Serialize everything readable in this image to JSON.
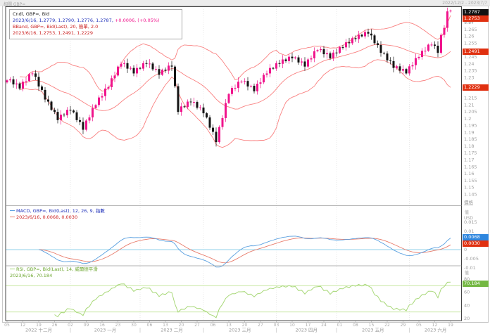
{
  "header": {
    "related_label": "相關 GBP=",
    "date_range": "2022/12/2 - 2023/7/7"
  },
  "main_legend": {
    "line1": "Cndl, GBP=, Bid",
    "line2_main": "2023/6/16, 1.2779, 1.2790, 1.2776, 1.2787,",
    "line2_change": " +0.0006, (+0.05%)",
    "line3": "BBand, GBP=, Bid(Last), 20, 簡單, 2.0",
    "line4": "2023/6/16, 1.2753, 1.2491, 1.2229"
  },
  "macd_legend": {
    "line1": "MACD, GBP=, Bid(Last), 12, 26, 9, 指數",
    "line2": "2023/6/16, 0.0068, 0.0030"
  },
  "rsi_legend": {
    "line1": "RSI, GBP=, Bid(Last), 14, 威爾德平滑",
    "line2": "2023/6/16, 70.184"
  },
  "y_axis": {
    "unit": "USD",
    "price_title": "價格",
    "macd_title": "值",
    "rsi_title": "值",
    "last_price": "1.2787",
    "bb_upper": "1.2753",
    "bb_mid": "1.2491",
    "bb_lower": "1.2229",
    "macd_badge": "0.0068",
    "signal_badge": "0.0030",
    "rsi_badge": "70.184"
  },
  "x_axis": {
    "day_labels": [
      "05",
      "12",
      "19",
      "26",
      "02",
      "09",
      "16",
      "23",
      "30",
      "06",
      "13",
      "20",
      "27",
      "06",
      "13",
      "20",
      "27",
      "03",
      "10",
      "17",
      "24",
      "01",
      "08",
      "15",
      "22",
      "29",
      "05",
      "12",
      "19"
    ],
    "months": [
      {
        "label": "2022 十二月",
        "start": 0,
        "end": 20
      },
      {
        "label": "2023 一月",
        "start": 20,
        "end": 42
      },
      {
        "label": "2023 二月",
        "start": 42,
        "end": 62
      },
      {
        "label": "2023 三月",
        "start": 62,
        "end": 85
      },
      {
        "label": "2023 四月",
        "start": 85,
        "end": 104
      },
      {
        "label": "2023 五月",
        "start": 104,
        "end": 127
      },
      {
        "label": "2023 六月",
        "start": 127,
        "end": 143.5
      }
    ]
  },
  "colors": {
    "up": "#f0148c",
    "down": "#141414",
    "bband": "#f98080",
    "macd": "#5aa0e0",
    "signal": "#e87b6a",
    "zero_line": "#8fd0e8",
    "rsi": "#a8d878",
    "rsi_band": "#bfe394",
    "badge_black": "#111111",
    "badge_red": "#e03010",
    "badge_blue": "#2e86de",
    "badge_green": "#74b843",
    "axis_text": "#a0a0a0",
    "grid": "#e2e2e2",
    "frame": "#444444",
    "divider": "#999999"
  },
  "chart_data": {
    "type": "candlestick",
    "symbol": "GBP=",
    "field": "Bid",
    "interval": "daily",
    "x_range": "2022/12/05 - 2023/06/16",
    "title": "Cndl, GBP=, Bid with BBand(20,2), MACD(12,26,9), RSI(14)",
    "price_axis": {
      "min": 1.14,
      "max": 1.28,
      "tick": 0.005,
      "unit": "USD"
    },
    "macd_axis": {
      "min": -0.01,
      "max": 0.02,
      "tick": 0.005
    },
    "rsi_axis": {
      "min": 20,
      "max": 80,
      "ticks": [
        80,
        60,
        40,
        20
      ],
      "bands": [
        70,
        30
      ]
    },
    "last_candle": {
      "date": "2023/6/16",
      "open": 1.2779,
      "high": 1.279,
      "low": 1.2776,
      "close": 1.2787,
      "change": 0.0006,
      "change_pct": "+0.05%"
    },
    "indicators": [
      {
        "type": "bollinger",
        "period": 20,
        "stdev": 2.0,
        "ma": "簡單",
        "last": {
          "upper": 1.2753,
          "mid": 1.2491,
          "lower": 1.2229
        }
      },
      {
        "type": "macd",
        "fast": 12,
        "slow": 26,
        "signal": 9,
        "method": "指數",
        "last": {
          "macd": 0.0068,
          "signal": 0.003
        }
      },
      {
        "type": "rsi",
        "period": 14,
        "method": "威爾德平滑",
        "last": 70.184
      }
    ],
    "closes": [
      1.228,
      1.2287,
      1.225,
      1.2257,
      1.222,
      1.227,
      1.2275,
      1.2325,
      1.233,
      1.2305,
      1.2235,
      1.221,
      1.214,
      1.2125,
      1.2065,
      1.205,
      1.199,
      1.203,
      1.2025,
      1.2065,
      1.206,
      1.2047,
      1.199,
      1.1977,
      1.192,
      1.1987,
      1.201,
      1.2077,
      1.21,
      1.2155,
      1.2165,
      1.222,
      1.223,
      1.2295,
      1.2315,
      1.238,
      1.24,
      1.2405,
      1.2365,
      1.237,
      1.233,
      1.237,
      1.2365,
      1.2405,
      1.24,
      1.2402,
      1.236,
      1.2362,
      1.232,
      1.2357,
      1.235,
      1.2387,
      1.238,
      1.2237,
      1.205,
      1.209,
      1.2085,
      1.2125,
      1.212,
      1.2122,
      1.208,
      1.2082,
      1.204,
      1.201,
      1.1935,
      1.1905,
      1.183,
      1.194,
      1.2005,
      1.2115,
      1.218,
      1.2225,
      1.2225,
      1.227,
      1.227,
      1.2275,
      1.2235,
      1.224,
      1.22,
      1.2255,
      1.2265,
      1.232,
      1.233,
      1.237,
      1.2365,
      1.2405,
      1.24,
      1.2432,
      1.242,
      1.2452,
      1.244,
      1.2447,
      1.241,
      1.2417,
      1.238,
      1.2432,
      1.244,
      1.2492,
      1.25,
      1.2507,
      1.247,
      1.2477,
      1.244,
      1.2482,
      1.248,
      1.2522,
      1.252,
      1.2557,
      1.255,
      1.2587,
      1.258,
      1.2612,
      1.26,
      1.2632,
      1.262,
      1.2607,
      1.255,
      1.2537,
      1.248,
      1.2475,
      1.2425,
      1.242,
      1.237,
      1.2382,
      1.235,
      1.2362,
      1.233,
      1.2382,
      1.239,
      1.2442,
      1.245,
      1.2495,
      1.2495,
      1.254,
      1.254,
      1.2532,
      1.248,
      1.2611,
      1.2662,
      1.2782,
      1.2787
    ]
  }
}
